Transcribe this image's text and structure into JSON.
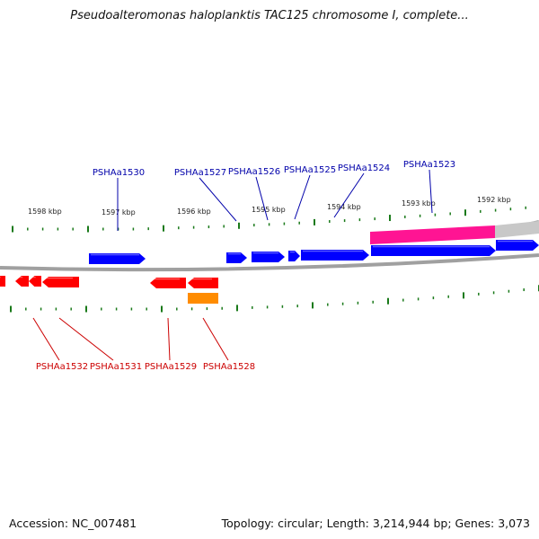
{
  "title": "Pseudoalteromonas haloplanktis TAC125 chromosome I, complete...",
  "footer": {
    "accession": "Accession: NC_007481",
    "summary": "Topology: circular; Length: 3,214,944 bp; Genes: 3,073"
  },
  "colors": {
    "backbone": "#808080",
    "forward_gene": "#0000ff",
    "reverse_gene": "#ff0000",
    "rna_gene": "#ff8c00",
    "highlight": "#ff1493",
    "tick": "#1a7a1a",
    "forward_label": "#0000aa",
    "reverse_label": "#cc0000"
  },
  "kbp_labels": [
    "1598 kbp",
    "1597 kbp",
    "1596 kbp",
    "1595 kbp",
    "1594 kbp",
    "1593 kbp",
    "1592 kbp"
  ],
  "forward_labels": [
    "PSHAa1530",
    "PSHAa1527",
    "PSHAa1526",
    "PSHAa1525",
    "PSHAa1524",
    "PSHAa1523"
  ],
  "reverse_labels": [
    "PSHAa1532",
    "PSHAa1531",
    "PSHAa1529",
    "PSHAa1528"
  ]
}
